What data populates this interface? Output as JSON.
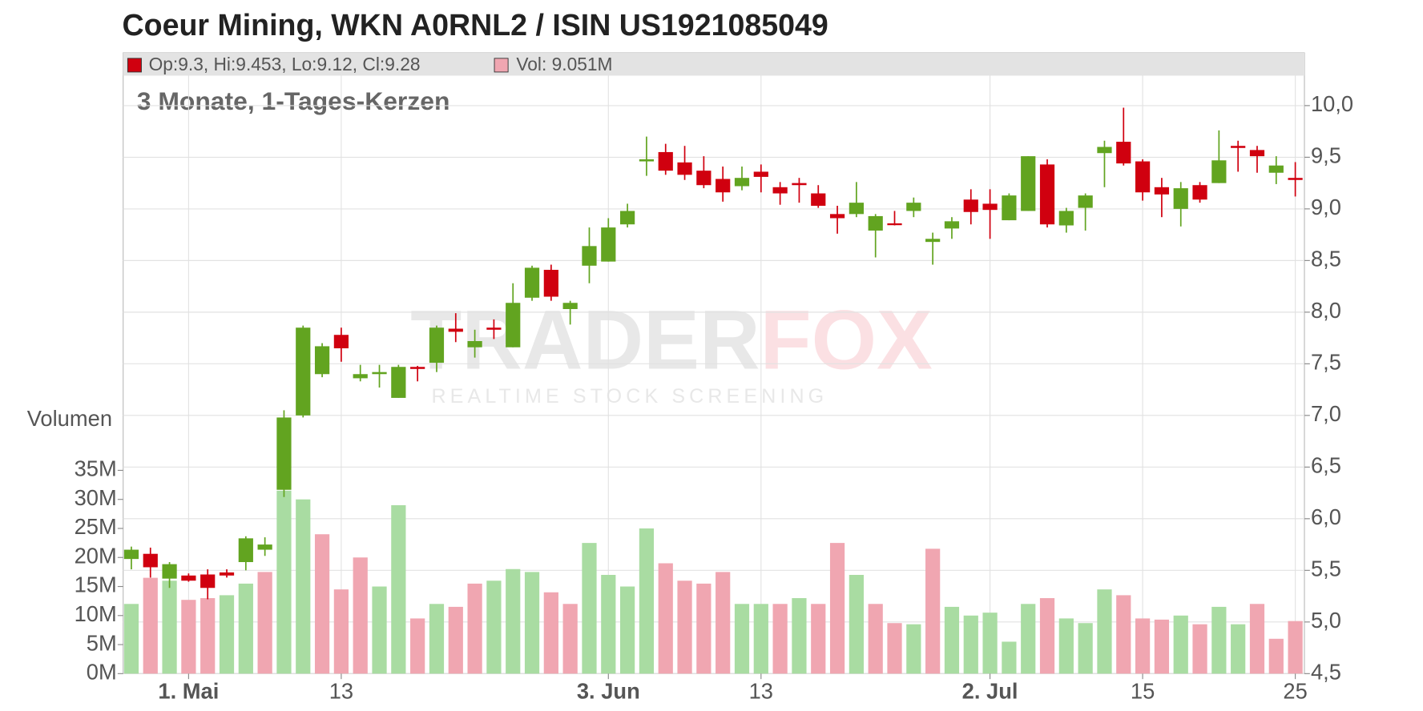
{
  "chart_data": {
    "type": "candlestick",
    "title": "Coeur Mining, WKN A0RNL2 / ISIN US1921085049",
    "subtitle": "3 Monate, 1-Tages-Kerzen",
    "legend_ohlc": "Op:9.3, Hi:9.453, Lo:9.12, Cl:9.28",
    "legend_volume": "Vol: 9.051M",
    "watermark": {
      "main": "TRADER",
      "accent": "FOX",
      "tagline": "REALTIME STOCK SCREENING"
    },
    "categories": [
      null,
      null,
      null,
      "1. Mai",
      null,
      null,
      null,
      null,
      null,
      null,
      null,
      "13",
      null,
      null,
      null,
      null,
      null,
      null,
      null,
      null,
      null,
      null,
      null,
      null,
      null,
      "3. Jun",
      null,
      null,
      null,
      null,
      null,
      null,
      null,
      "13",
      null,
      null,
      null,
      null,
      null,
      null,
      null,
      null,
      null,
      null,
      null,
      "2. Jul",
      null,
      null,
      null,
      null,
      null,
      null,
      null,
      "15",
      null,
      null,
      null,
      null,
      null,
      null,
      null,
      "25"
    ],
    "open": [
      5.61,
      5.66,
      5.42,
      5.45,
      5.46,
      5.48,
      5.58,
      5.7,
      6.28,
      7.0,
      7.4,
      7.78,
      7.36,
      7.4,
      7.17,
      7.47,
      7.51,
      7.84,
      7.66,
      7.85,
      7.66,
      8.14,
      8.41,
      8.03,
      8.45,
      8.49,
      8.85,
      9.46,
      9.55,
      9.45,
      9.37,
      9.29,
      9.22,
      9.36,
      9.21,
      9.25,
      9.15,
      8.95,
      8.95,
      8.79,
      8.86,
      8.98,
      8.68,
      8.81,
      9.09,
      9.05,
      8.89,
      8.98,
      9.43,
      8.84,
      9.01,
      9.54,
      9.65,
      9.46,
      9.21,
      9.0,
      9.23,
      9.25,
      9.61,
      9.57,
      9.35,
      9.3
    ],
    "high": [
      5.73,
      5.72,
      5.58,
      5.47,
      5.51,
      5.51,
      5.83,
      5.82,
      7.05,
      7.87,
      7.7,
      7.85,
      7.49,
      7.49,
      7.49,
      7.48,
      7.87,
      7.99,
      7.83,
      7.93,
      8.28,
      8.45,
      8.46,
      8.11,
      8.82,
      8.91,
      9.05,
      9.7,
      9.63,
      9.61,
      9.51,
      9.41,
      9.41,
      9.43,
      9.26,
      9.3,
      9.23,
      9.03,
      9.26,
      8.95,
      8.98,
      9.11,
      8.77,
      8.92,
      9.19,
      9.19,
      9.15,
      9.51,
      9.48,
      9.01,
      9.15,
      9.66,
      9.98,
      9.48,
      9.3,
      9.26,
      9.26,
      9.76,
      9.66,
      9.61,
      9.51,
      9.453
    ],
    "low": [
      5.51,
      5.43,
      5.33,
      5.39,
      5.22,
      5.43,
      5.5,
      5.64,
      6.21,
      6.98,
      7.37,
      7.52,
      7.33,
      7.27,
      7.17,
      7.33,
      7.42,
      7.71,
      7.56,
      7.74,
      7.66,
      8.11,
      8.11,
      7.88,
      8.28,
      8.49,
      8.82,
      9.32,
      9.33,
      9.28,
      9.2,
      9.07,
      9.18,
      9.16,
      9.04,
      9.06,
      9.01,
      8.76,
      8.92,
      8.53,
      8.84,
      8.92,
      8.46,
      8.71,
      8.85,
      8.71,
      8.89,
      8.98,
      8.82,
      8.77,
      8.79,
      9.21,
      9.42,
      9.08,
      8.92,
      8.83,
      9.06,
      9.25,
      9.36,
      9.35,
      9.24,
      9.12
    ],
    "close": [
      5.7,
      5.53,
      5.56,
      5.4,
      5.33,
      5.45,
      5.81,
      5.75,
      6.98,
      7.85,
      7.67,
      7.65,
      7.4,
      7.42,
      7.47,
      7.45,
      7.85,
      7.81,
      7.72,
      7.83,
      8.09,
      8.43,
      8.15,
      8.09,
      8.64,
      8.82,
      8.98,
      9.48,
      9.37,
      9.33,
      9.23,
      9.16,
      9.3,
      9.31,
      9.15,
      9.23,
      9.03,
      8.91,
      9.06,
      8.93,
      8.85,
      9.06,
      8.71,
      8.88,
      8.97,
      8.99,
      9.13,
      9.51,
      8.85,
      8.98,
      9.13,
      9.6,
      9.44,
      9.16,
      9.14,
      9.2,
      9.09,
      9.47,
      9.59,
      9.51,
      9.42,
      9.28
    ],
    "up_color": "#62a420",
    "down_color": "#d0000f",
    "ylim": [
      4.5,
      10.29
    ],
    "yticks": [
      {
        "value": 4.5,
        "label": "4,5"
      },
      {
        "value": 5.0,
        "label": "5,0"
      },
      {
        "value": 5.5,
        "label": "5,5"
      },
      {
        "value": 6.0,
        "label": "6,0"
      },
      {
        "value": 6.5,
        "label": "6,5"
      },
      {
        "value": 7.0,
        "label": "7,0"
      },
      {
        "value": 7.5,
        "label": "7,5"
      },
      {
        "value": 8.0,
        "label": "8,0"
      },
      {
        "value": 8.5,
        "label": "8,5"
      },
      {
        "value": 9.0,
        "label": "9,0"
      },
      {
        "value": 9.5,
        "label": "9,5"
      },
      {
        "value": 10.0,
        "label": "10,0"
      }
    ],
    "grid": true,
    "volume": {
      "label": "Volumen",
      "values": [
        12,
        16.5,
        16,
        12.7,
        13,
        13.5,
        15.5,
        17.5,
        31.5,
        30,
        24,
        14.5,
        20,
        15,
        29,
        9.5,
        12,
        11.5,
        15.5,
        16,
        18,
        17.5,
        14,
        12,
        22.5,
        17,
        15,
        25,
        19,
        16,
        15.5,
        17.5,
        12,
        12,
        12,
        13,
        12,
        22.5,
        17,
        12,
        8.7,
        8.5,
        21.5,
        11.5,
        10,
        10.5,
        5.5,
        12,
        13,
        9.5,
        8.7,
        14.5,
        13.5,
        9.5,
        9.3,
        10,
        8.5,
        11.5,
        8.5,
        12,
        6,
        9.051
      ],
      "up_color": "#a9dca2",
      "down_color": "#f0a6b1",
      "ylim": [
        0,
        35
      ],
      "yticks": [
        {
          "value": 0,
          "label": "0M"
        },
        {
          "value": 5,
          "label": "5M"
        },
        {
          "value": 10,
          "label": "10M"
        },
        {
          "value": 15,
          "label": "15M"
        },
        {
          "value": 20,
          "label": "20M"
        },
        {
          "value": 25,
          "label": "25M"
        },
        {
          "value": 30,
          "label": "30M"
        },
        {
          "value": 35,
          "label": "35M"
        }
      ]
    }
  }
}
